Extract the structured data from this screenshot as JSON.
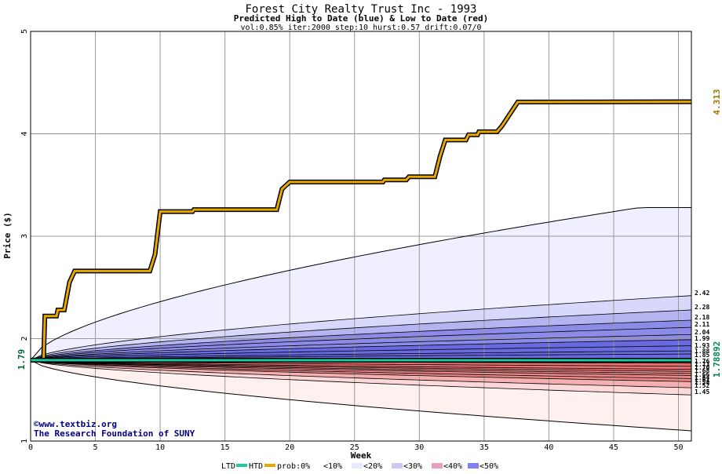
{
  "title": "Forest City Realty Trust Inc - 1993",
  "subtitle": "Predicted High to Date (blue) &  Low to Date (red)",
  "params": "vol:0.85% iter:2000 step:10 hurst:0.57 drift:0.07/0",
  "xlabel": "Week",
  "ylabel": "Price ($)",
  "credit_line1": "©www.textbiz.org",
  "credit_line2": "The Research Foundation of SUNY",
  "start_price_label": "1.79",
  "htd_final_label": "4.313",
  "ltd_final_label": "1.78892",
  "legend": {
    "ltd": "LTD",
    "htd": "HTD",
    "prob": "prob:0%",
    "p10": "<10%",
    "p20": "<20%",
    "p30": "<30%",
    "p40": "<40%",
    "p50": "<50%"
  },
  "colors": {
    "htd_line": "#e8a800",
    "ltd_line": "#20c8a0",
    "blue_band": "#0000ff",
    "red_band": "#ff3030",
    "grid": "#888888",
    "axis_text": "#000000",
    "htd_label": "#a07800",
    "ltd_label": "#008855",
    "credit": "#000080"
  },
  "chart_data": {
    "type": "area",
    "xlim": [
      0,
      51
    ],
    "ylim": [
      1,
      5
    ],
    "x_ticks": [
      0,
      5,
      10,
      15,
      20,
      25,
      30,
      35,
      40,
      45,
      50
    ],
    "y_ticks": [
      1,
      2,
      3,
      4,
      5
    ],
    "grid": true,
    "start_price": 1.79,
    "htd_series": [
      [
        0,
        1.79
      ],
      [
        1,
        1.79
      ],
      [
        1.1,
        2.22
      ],
      [
        2,
        2.22
      ],
      [
        2.1,
        2.28
      ],
      [
        2.6,
        2.28
      ],
      [
        3,
        2.55
      ],
      [
        3.4,
        2.66
      ],
      [
        9.2,
        2.66
      ],
      [
        9.6,
        2.82
      ],
      [
        10,
        3.24
      ],
      [
        12.5,
        3.24
      ],
      [
        12.6,
        3.26
      ],
      [
        19,
        3.26
      ],
      [
        19.4,
        3.46
      ],
      [
        20,
        3.53
      ],
      [
        27.2,
        3.53
      ],
      [
        27.3,
        3.55
      ],
      [
        29,
        3.55
      ],
      [
        29.2,
        3.58
      ],
      [
        31.2,
        3.58
      ],
      [
        31.6,
        3.78
      ],
      [
        32,
        3.94
      ],
      [
        33.6,
        3.94
      ],
      [
        33.8,
        3.99
      ],
      [
        34.5,
        3.99
      ],
      [
        34.6,
        4.02
      ],
      [
        36,
        4.02
      ],
      [
        36.4,
        4.08
      ],
      [
        37.6,
        4.31
      ],
      [
        51,
        4.313
      ]
    ],
    "ltd_series": [
      [
        0,
        1.79
      ],
      [
        5,
        1.789
      ],
      [
        51,
        1.78892
      ]
    ],
    "blue_bands": [
      {
        "name": "<10%",
        "final": 3.28,
        "plateau_week": 47
      },
      {
        "name": "<20%",
        "final": 2.42
      },
      {
        "name": "<30%",
        "final": 2.28
      },
      {
        "name": "<40%",
        "final": 2.18
      },
      {
        "name": "<50%",
        "final": 1.99
      }
    ],
    "red_bands": [
      {
        "name": "<10%",
        "final": 1.1
      },
      {
        "name": "<20%",
        "final": 1.45
      },
      {
        "name": "<30%",
        "final": 1.52
      },
      {
        "name": "<40%",
        "final": 1.58
      },
      {
        "name": "<50%",
        "final": 1.68
      }
    ],
    "blue_right_labels": [
      "2.42",
      "2.28",
      "2.18",
      "2.11",
      "2.04",
      "1.99",
      "1.93",
      "1.88",
      "1.85"
    ],
    "red_right_labels": [
      "1.76",
      "1.73",
      "1.70",
      "1.68",
      "1.66",
      "1.64",
      "1.61",
      "1.58",
      "1.52",
      "1.45"
    ],
    "blue_lines_final": [
      2.42,
      2.28,
      2.18,
      2.11,
      2.04,
      1.99,
      1.93,
      1.88,
      1.85
    ],
    "red_lines_final": [
      1.76,
      1.73,
      1.7,
      1.68,
      1.66,
      1.64,
      1.61,
      1.58,
      1.52,
      1.45
    ]
  }
}
